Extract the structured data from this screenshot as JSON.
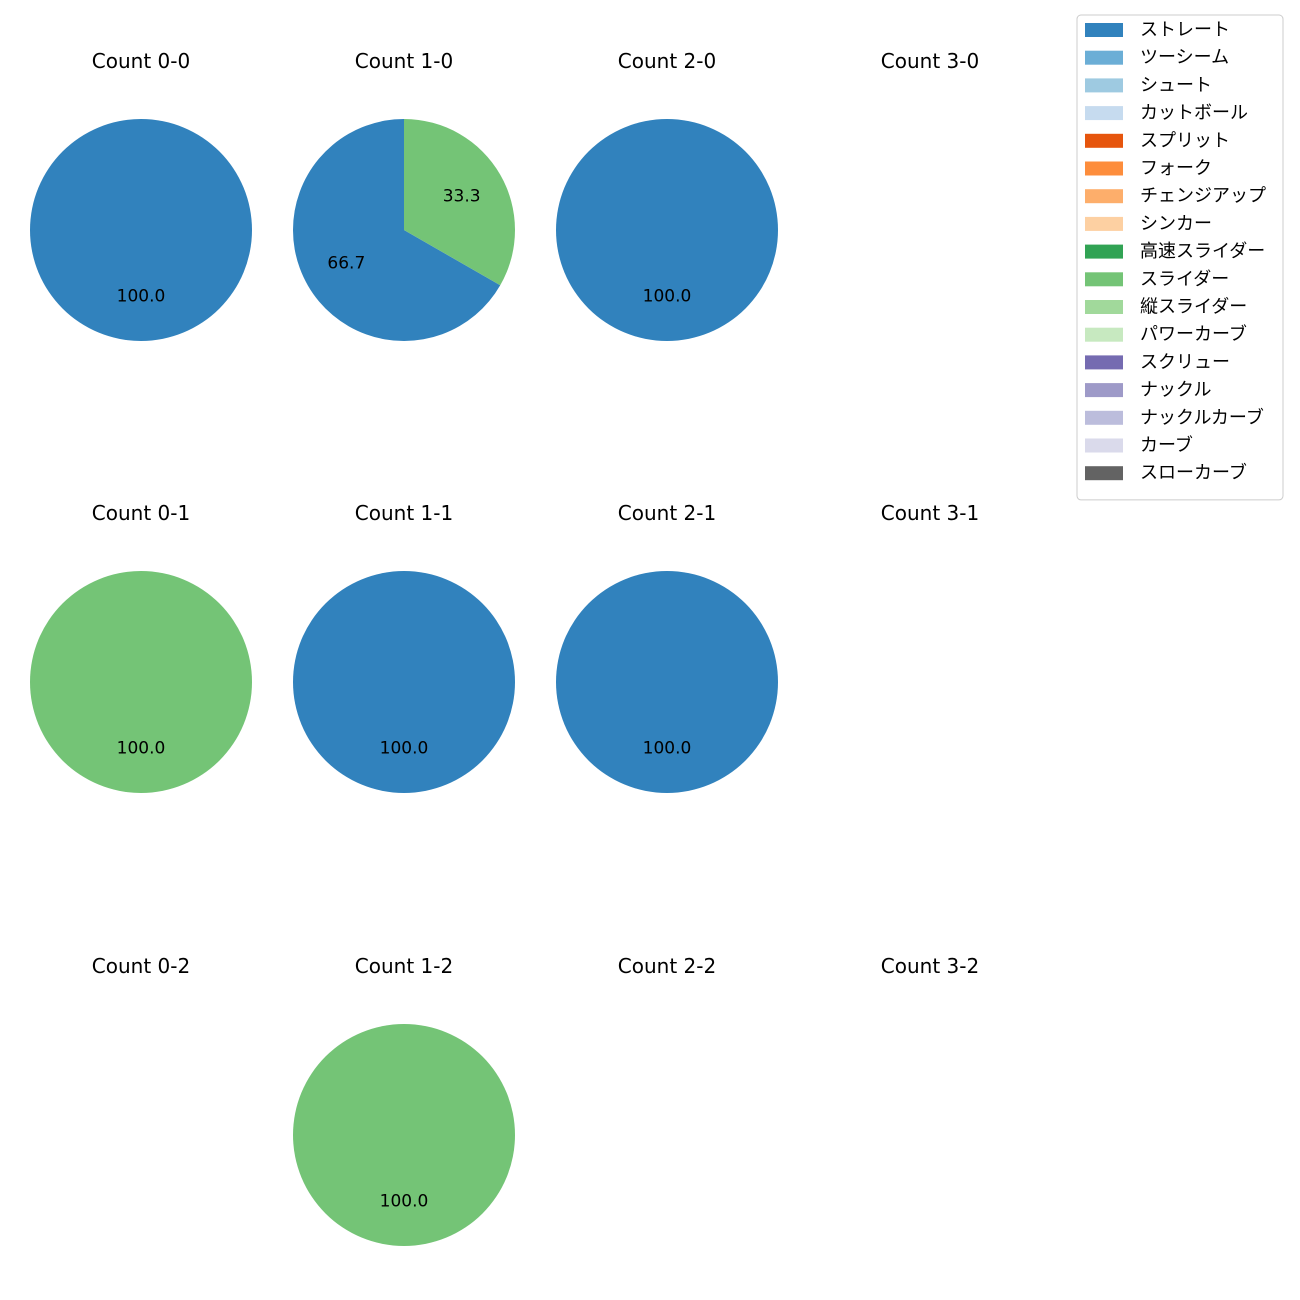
{
  "chart_data": {
    "type": "pie",
    "legend": {
      "placement": "top-right",
      "entries": [
        {
          "label": "ストレート",
          "color": "#3182bd"
        },
        {
          "label": "ツーシーム",
          "color": "#6baed6"
        },
        {
          "label": "シュート",
          "color": "#9ecae1"
        },
        {
          "label": "カットボール",
          "color": "#c6dbef"
        },
        {
          "label": "スプリット",
          "color": "#e6550d"
        },
        {
          "label": "フォーク",
          "color": "#fd8d3c"
        },
        {
          "label": "チェンジアップ",
          "color": "#fdae6b"
        },
        {
          "label": "シンカー",
          "color": "#fdd0a2"
        },
        {
          "label": "高速スライダー",
          "color": "#31a354"
        },
        {
          "label": "スライダー",
          "color": "#74c476"
        },
        {
          "label": "縦スライダー",
          "color": "#a1d99b"
        },
        {
          "label": "パワーカーブ",
          "color": "#c7e9c0"
        },
        {
          "label": "スクリュー",
          "color": "#756bb1"
        },
        {
          "label": "ナックル",
          "color": "#9e9ac8"
        },
        {
          "label": "ナックルカーブ",
          "color": "#bcbddc"
        },
        {
          "label": "カーブ",
          "color": "#dadaeb"
        },
        {
          "label": "スローカーブ",
          "color": "#636363"
        }
      ]
    },
    "subplots": [
      {
        "title": "Count 0-0",
        "slices": [
          {
            "pitch": "ストレート",
            "value": 100.0,
            "label": "100.0"
          }
        ]
      },
      {
        "title": "Count 1-0",
        "slices": [
          {
            "pitch": "ストレート",
            "value": 66.7,
            "label": "66.7"
          },
          {
            "pitch": "スライダー",
            "value": 33.3,
            "label": "33.3"
          }
        ]
      },
      {
        "title": "Count 2-0",
        "slices": [
          {
            "pitch": "ストレート",
            "value": 100.0,
            "label": "100.0"
          }
        ]
      },
      {
        "title": "Count 3-0",
        "slices": []
      },
      {
        "title": "Count 0-1",
        "slices": [
          {
            "pitch": "スライダー",
            "value": 100.0,
            "label": "100.0"
          }
        ]
      },
      {
        "title": "Count 1-1",
        "slices": [
          {
            "pitch": "ストレート",
            "value": 100.0,
            "label": "100.0"
          }
        ]
      },
      {
        "title": "Count 2-1",
        "slices": [
          {
            "pitch": "ストレート",
            "value": 100.0,
            "label": "100.0"
          }
        ]
      },
      {
        "title": "Count 3-1",
        "slices": []
      },
      {
        "title": "Count 0-2",
        "slices": []
      },
      {
        "title": "Count 1-2",
        "slices": [
          {
            "pitch": "スライダー",
            "value": 100.0,
            "label": "100.0"
          }
        ]
      },
      {
        "title": "Count 2-2",
        "slices": []
      },
      {
        "title": "Count 3-2",
        "slices": []
      }
    ]
  }
}
